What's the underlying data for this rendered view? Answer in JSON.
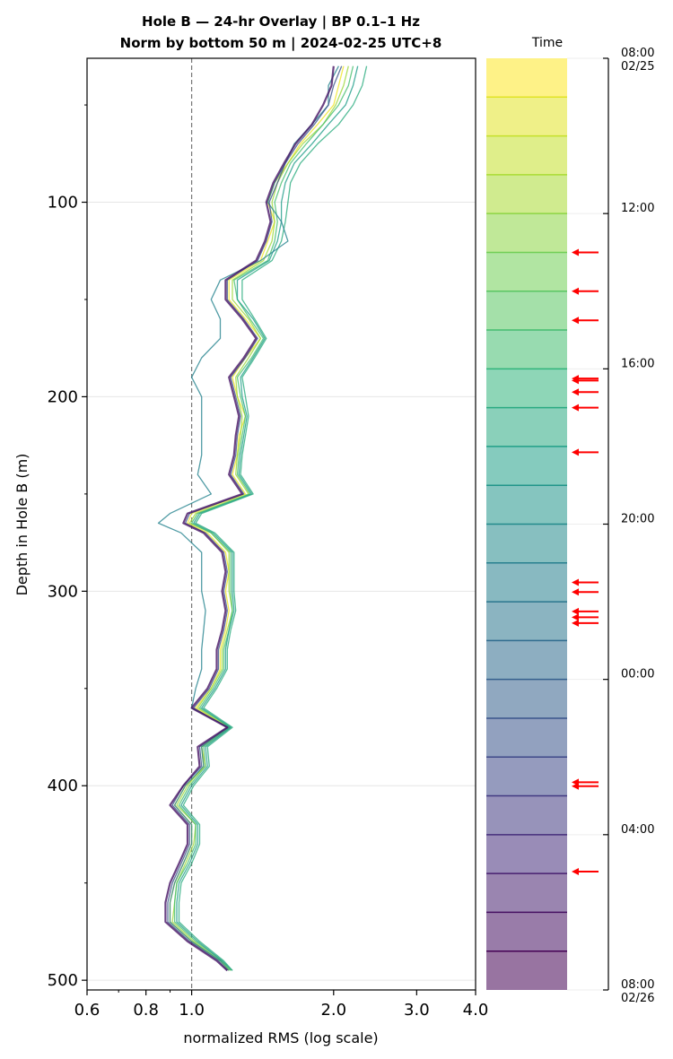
{
  "chart_data": {
    "type": "line",
    "title": "Hole B — 24-hr Overlay  |  BP 0.1–1 Hz",
    "subtitle": "Norm by bottom 50 m  |  2024-02-25 UTC+8",
    "xlabel": "normalized RMS  (log scale)",
    "ylabel": "Depth in Hole B (m)",
    "x_scale": "log",
    "xlim": [
      0.6,
      4.0
    ],
    "ylim": [
      505,
      26
    ],
    "y_inverted": true,
    "x_ticks": [
      0.6,
      0.8,
      1.0,
      2.0,
      3.0,
      4.0
    ],
    "x_tick_labels": [
      "0.6",
      "0.8",
      "1.0",
      "2.0",
      "3.0",
      "4.0"
    ],
    "y_ticks": [
      100,
      200,
      300,
      400,
      500
    ],
    "y_tick_labels": [
      "100",
      "200",
      "300",
      "400",
      "500"
    ],
    "reference_line_x": 1.0,
    "grid": "horizontal",
    "depth": [
      30,
      40,
      50,
      60,
      70,
      80,
      90,
      100,
      110,
      120,
      130,
      140,
      150,
      160,
      170,
      180,
      190,
      200,
      210,
      220,
      230,
      240,
      250,
      260,
      265,
      270,
      280,
      290,
      300,
      310,
      320,
      330,
      340,
      350,
      360,
      370,
      380,
      390,
      400,
      410,
      420,
      430,
      440,
      450,
      460,
      470,
      480,
      490,
      495
    ],
    "series": [
      {
        "values": [
          2.1,
          2.05,
          2.0,
          1.85,
          1.7,
          1.6,
          1.5,
          1.45,
          1.5,
          1.45,
          1.4,
          1.2,
          1.2,
          1.3,
          1.4,
          1.3,
          1.22,
          1.25,
          1.3,
          1.26,
          1.25,
          1.22,
          1.3,
          1.0,
          0.98,
          1.08,
          1.18,
          1.2,
          1.18,
          1.2,
          1.18,
          1.15,
          1.15,
          1.1,
          1.02,
          1.2,
          1.05,
          1.07,
          0.97,
          0.92,
          1.0,
          1.0,
          0.96,
          0.92,
          0.9,
          0.9,
          1.0,
          1.15,
          1.2
        ]
      },
      {
        "values": [
          2.15,
          2.1,
          2.02,
          1.9,
          1.72,
          1.6,
          1.52,
          1.48,
          1.5,
          1.48,
          1.42,
          1.22,
          1.22,
          1.32,
          1.4,
          1.32,
          1.24,
          1.25,
          1.28,
          1.27,
          1.25,
          1.24,
          1.32,
          1.02,
          0.99,
          1.1,
          1.2,
          1.2,
          1.2,
          1.22,
          1.19,
          1.16,
          1.16,
          1.1,
          1.03,
          1.2,
          1.05,
          1.06,
          0.98,
          0.93,
          1.02,
          1.01,
          0.97,
          0.93,
          0.92,
          0.91,
          1.01,
          1.15,
          1.21
        ]
      },
      {
        "values": [
          2.2,
          2.15,
          2.05,
          1.9,
          1.75,
          1.62,
          1.55,
          1.5,
          1.52,
          1.5,
          1.45,
          1.23,
          1.25,
          1.33,
          1.42,
          1.34,
          1.25,
          1.27,
          1.3,
          1.28,
          1.26,
          1.25,
          1.33,
          1.03,
          1.0,
          1.1,
          1.21,
          1.21,
          1.21,
          1.22,
          1.2,
          1.17,
          1.17,
          1.11,
          1.04,
          1.21,
          1.06,
          1.07,
          0.99,
          0.94,
          1.02,
          1.02,
          0.98,
          0.93,
          0.92,
          0.92,
          1.02,
          1.16,
          1.21
        ]
      },
      {
        "values": [
          2.25,
          2.2,
          2.12,
          1.95,
          1.8,
          1.65,
          1.58,
          1.55,
          1.55,
          1.52,
          1.46,
          1.25,
          1.25,
          1.35,
          1.43,
          1.35,
          1.27,
          1.28,
          1.31,
          1.29,
          1.27,
          1.26,
          1.34,
          1.04,
          1.01,
          1.11,
          1.22,
          1.22,
          1.22,
          1.23,
          1.2,
          1.18,
          1.18,
          1.12,
          1.05,
          1.21,
          1.07,
          1.08,
          1.0,
          0.95,
          1.03,
          1.03,
          0.99,
          0.94,
          0.93,
          0.93,
          1.03,
          1.16,
          1.22
        ]
      },
      {
        "values": [
          2.35,
          2.3,
          2.2,
          2.05,
          1.85,
          1.7,
          1.62,
          1.6,
          1.58,
          1.55,
          1.48,
          1.28,
          1.28,
          1.36,
          1.44,
          1.36,
          1.28,
          1.3,
          1.32,
          1.3,
          1.28,
          1.27,
          1.35,
          1.05,
          1.02,
          1.12,
          1.23,
          1.23,
          1.23,
          1.24,
          1.21,
          1.19,
          1.19,
          1.13,
          1.06,
          1.22,
          1.08,
          1.09,
          1.01,
          0.96,
          1.04,
          1.04,
          1.0,
          0.95,
          0.94,
          0.94,
          1.04,
          1.17,
          1.22
        ]
      },
      {
        "values": [
          2.05,
          1.95,
          1.95,
          1.8,
          1.65,
          1.58,
          1.5,
          1.45,
          1.55,
          1.6,
          1.4,
          1.15,
          1.1,
          1.15,
          1.15,
          1.05,
          1.0,
          1.05,
          1.05,
          1.05,
          1.05,
          1.03,
          1.1,
          0.9,
          0.85,
          0.95,
          1.05,
          1.05,
          1.05,
          1.07,
          1.06,
          1.05,
          1.05,
          1.02,
          1.0,
          1.2,
          1.05,
          1.06,
          0.97,
          0.92,
          1.0,
          1.0,
          0.96,
          0.92,
          0.9,
          0.9,
          1.0,
          1.15,
          1.2
        ]
      },
      {
        "values": [
          2.08,
          2.0,
          1.95,
          1.82,
          1.68,
          1.58,
          1.52,
          1.46,
          1.48,
          1.44,
          1.38,
          1.19,
          1.19,
          1.29,
          1.38,
          1.3,
          1.21,
          1.24,
          1.27,
          1.25,
          1.24,
          1.21,
          1.29,
          0.99,
          0.97,
          1.07,
          1.17,
          1.19,
          1.17,
          1.19,
          1.17,
          1.14,
          1.14,
          1.09,
          1.01,
          1.19,
          1.04,
          1.05,
          0.96,
          0.91,
          0.99,
          0.99,
          0.95,
          0.91,
          0.89,
          0.89,
          0.99,
          1.14,
          1.19
        ]
      },
      {
        "values": [
          2.0,
          1.98,
          1.9,
          1.8,
          1.66,
          1.57,
          1.49,
          1.44,
          1.47,
          1.43,
          1.37,
          1.18,
          1.18,
          1.28,
          1.37,
          1.29,
          1.2,
          1.23,
          1.26,
          1.24,
          1.23,
          1.2,
          1.28,
          0.98,
          0.96,
          1.06,
          1.16,
          1.18,
          1.16,
          1.18,
          1.16,
          1.13,
          1.13,
          1.08,
          1.0,
          1.19,
          1.03,
          1.04,
          0.96,
          0.9,
          0.98,
          0.98,
          0.94,
          0.9,
          0.88,
          0.88,
          0.98,
          1.13,
          1.19
        ]
      }
    ],
    "colorbar": {
      "label": "Time",
      "tick_labels": [
        "08:00\n02/25",
        "12:00",
        "16:00",
        "20:00",
        "00:00",
        "04:00",
        "08:00\n02/26"
      ],
      "tick_hours": [
        0,
        4,
        8,
        12,
        16,
        20,
        24
      ],
      "bands": 24,
      "colormap": "viridis (reversed: top yellow, bottom purple)",
      "marker_color": "#ff0000",
      "event_markers_hours": [
        5.0,
        6.0,
        6.75,
        8.25,
        8.3,
        8.6,
        9.0,
        10.15,
        13.5,
        13.75,
        14.25,
        14.4,
        14.55,
        18.65,
        18.75,
        20.95
      ]
    }
  }
}
